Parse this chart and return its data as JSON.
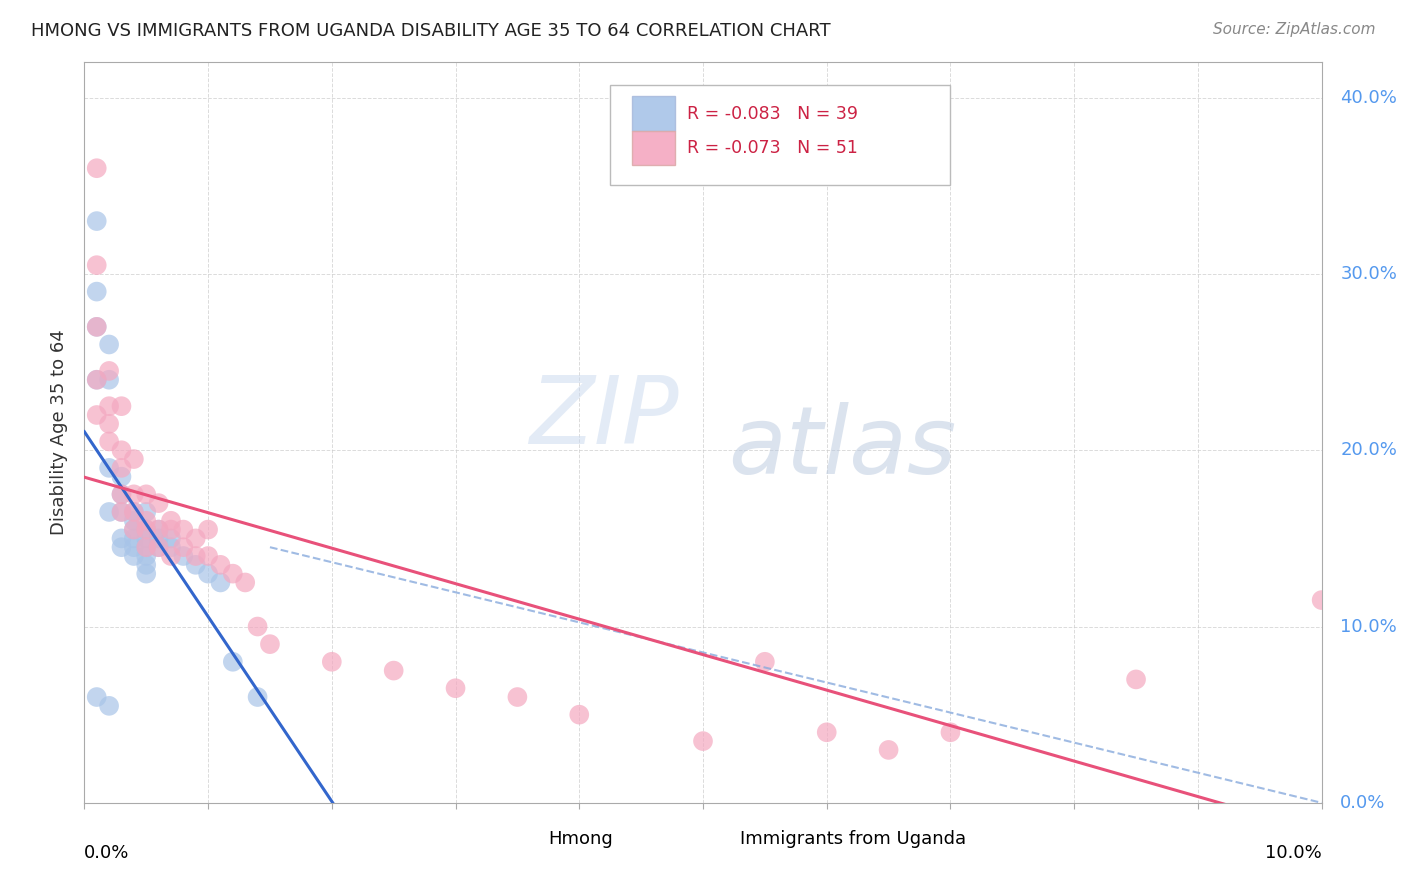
{
  "title": "HMONG VS IMMIGRANTS FROM UGANDA DISABILITY AGE 35 TO 64 CORRELATION CHART",
  "source": "Source: ZipAtlas.com",
  "ylabel": "Disability Age 35 to 64",
  "watermark_zip": "ZIP",
  "watermark_atlas": "atlas",
  "legend_r_hmong": "R = -0.083",
  "legend_n_hmong": "N = 39",
  "legend_r_uganda": "R = -0.073",
  "legend_n_uganda": "N = 51",
  "legend_hmong": "Hmong",
  "legend_uganda": "Immigrants from Uganda",
  "hmong_color": "#a8c4e8",
  "uganda_color": "#f4a8c0",
  "hmong_line_color": "#3366cc",
  "uganda_line_color": "#e8517a",
  "hmong_dash_color": "#88aadd",
  "background_color": "#ffffff",
  "grid_color": "#cccccc",
  "right_axis_color": "#5599ee",
  "xlim": [
    0.0,
    0.1
  ],
  "ylim": [
    0.0,
    0.42
  ],
  "hmong_x": [
    0.001,
    0.001,
    0.001,
    0.001,
    0.002,
    0.002,
    0.002,
    0.002,
    0.003,
    0.003,
    0.003,
    0.003,
    0.003,
    0.004,
    0.004,
    0.004,
    0.004,
    0.004,
    0.004,
    0.005,
    0.005,
    0.005,
    0.005,
    0.005,
    0.005,
    0.005,
    0.006,
    0.006,
    0.006,
    0.007,
    0.007,
    0.008,
    0.009,
    0.01,
    0.011,
    0.012,
    0.014,
    0.001,
    0.002
  ],
  "hmong_y": [
    0.33,
    0.29,
    0.27,
    0.24,
    0.26,
    0.24,
    0.19,
    0.165,
    0.185,
    0.175,
    0.165,
    0.15,
    0.145,
    0.165,
    0.16,
    0.155,
    0.15,
    0.145,
    0.14,
    0.165,
    0.155,
    0.15,
    0.145,
    0.14,
    0.135,
    0.13,
    0.155,
    0.15,
    0.145,
    0.15,
    0.145,
    0.14,
    0.135,
    0.13,
    0.125,
    0.08,
    0.06,
    0.06,
    0.055
  ],
  "uganda_x": [
    0.001,
    0.001,
    0.001,
    0.001,
    0.001,
    0.002,
    0.002,
    0.002,
    0.002,
    0.003,
    0.003,
    0.003,
    0.003,
    0.003,
    0.004,
    0.004,
    0.004,
    0.004,
    0.005,
    0.005,
    0.005,
    0.005,
    0.006,
    0.006,
    0.006,
    0.007,
    0.007,
    0.007,
    0.008,
    0.008,
    0.009,
    0.009,
    0.01,
    0.01,
    0.011,
    0.012,
    0.013,
    0.014,
    0.015,
    0.02,
    0.025,
    0.03,
    0.035,
    0.04,
    0.05,
    0.055,
    0.06,
    0.065,
    0.07,
    0.085,
    0.1
  ],
  "uganda_y": [
    0.36,
    0.305,
    0.27,
    0.24,
    0.22,
    0.245,
    0.225,
    0.215,
    0.205,
    0.225,
    0.2,
    0.19,
    0.175,
    0.165,
    0.195,
    0.175,
    0.165,
    0.155,
    0.175,
    0.16,
    0.155,
    0.145,
    0.17,
    0.155,
    0.145,
    0.16,
    0.155,
    0.14,
    0.155,
    0.145,
    0.15,
    0.14,
    0.155,
    0.14,
    0.135,
    0.13,
    0.125,
    0.1,
    0.09,
    0.08,
    0.075,
    0.065,
    0.06,
    0.05,
    0.035,
    0.08,
    0.04,
    0.03,
    0.04,
    0.07,
    0.115
  ]
}
